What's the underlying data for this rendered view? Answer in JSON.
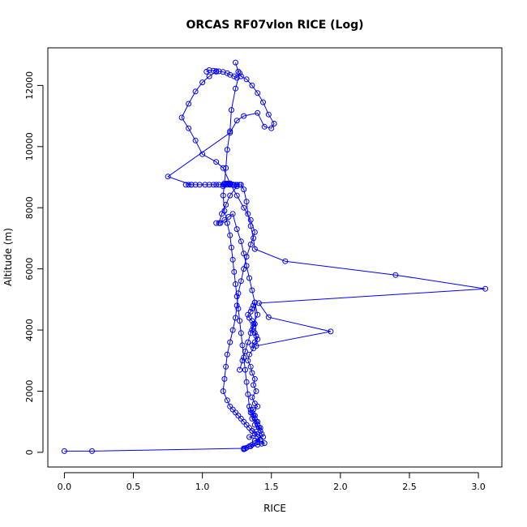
{
  "chart_data": {
    "type": "scatter",
    "title": "ORCAS RF07vlon RICE (Log)",
    "xlabel": "RICE",
    "ylabel": "Altitude (m)",
    "xlim": [
      -0.12,
      3.17
    ],
    "ylim": [
      -480,
      13230
    ],
    "x_ticks": [
      0,
      0.5,
      1,
      1.5,
      2,
      2.5,
      3
    ],
    "x_tick_labels": [
      "0.0",
      "0.5",
      "1.0",
      "1.5",
      "2.0",
      "2.5",
      "3.0"
    ],
    "y_ticks": [
      0,
      2000,
      4000,
      6000,
      8000,
      10000,
      12000
    ],
    "y_tick_labels": [
      "0",
      "2000",
      "4000",
      "6000",
      "8000",
      "10000",
      "12000"
    ],
    "marker": "open-circle",
    "line": "connected",
    "grid": false,
    "legend": "none",
    "color": "#0000ff",
    "series": [
      {
        "x": [
          0.0,
          0.2,
          1.3,
          1.35,
          1.4,
          1.43,
          1.45,
          1.38,
          1.42,
          1.34,
          1.4,
          1.36,
          1.42,
          1.38,
          1.4,
          1.36,
          1.38,
          1.35,
          1.37,
          1.4,
          1.38,
          1.36,
          1.39,
          1.37,
          1.38,
          1.36,
          1.35,
          1.33,
          1.34,
          1.37,
          1.36,
          1.38,
          1.4,
          1.39,
          1.38,
          1.36,
          1.37,
          1.38,
          1.36,
          1.34,
          1.33,
          1.35,
          1.36,
          1.37,
          1.38,
          1.39,
          1.93,
          1.48,
          1.41,
          3.05,
          2.4,
          1.6,
          1.38,
          1.37,
          1.35,
          1.33,
          1.32,
          1.3,
          1.28,
          1.27,
          1.25,
          1.24,
          1.22,
          1.2,
          1.18,
          1.15,
          1.12,
          1.1,
          1.08,
          1.05,
          1.02,
          0.98,
          0.95,
          0.92,
          0.9,
          0.88,
          0.92,
          0.75,
          1.2,
          1.25,
          1.3,
          1.4,
          1.45,
          1.5,
          1.52,
          1.48,
          1.44,
          1.4,
          1.36,
          1.32,
          1.28,
          1.26,
          1.24
        ],
        "y": [
          40,
          40,
          130,
          200,
          250,
          280,
          300,
          380,
          420,
          500,
          600,
          700,
          800,
          900,
          1000,
          1100,
          1200,
          1300,
          1400,
          1500,
          1600,
          1800,
          2000,
          2200,
          2400,
          2600,
          2800,
          3000,
          3200,
          3400,
          3500,
          3600,
          3700,
          3800,
          3900,
          4000,
          4100,
          4200,
          4300,
          4400,
          4500,
          4600,
          4700,
          4800,
          4900,
          3480,
          3950,
          4420,
          4880,
          5350,
          5800,
          6250,
          6650,
          7000,
          7400,
          7800,
          8200,
          8600,
          8750,
          8750,
          8750,
          8750,
          8750,
          8750,
          8750,
          8750,
          8750,
          8750,
          8750,
          8750,
          8750,
          8750,
          8750,
          8750,
          8750,
          8750,
          8750,
          9020,
          10450,
          10850,
          11000,
          11100,
          10650,
          10600,
          10750,
          11050,
          11450,
          11750,
          12000,
          12200,
          12300,
          12450,
          12750
        ]
      },
      {
        "x": [
          1.1,
          1.05,
          1.0,
          0.95,
          0.9,
          0.85,
          0.9,
          0.95,
          1.0,
          1.1,
          1.15,
          1.2,
          1.25,
          1.3,
          1.35,
          1.38,
          1.35,
          1.32,
          1.3,
          1.28,
          1.26,
          1.25,
          1.24,
          1.22,
          1.2,
          1.18,
          1.17,
          1.16,
          1.15,
          1.18,
          1.2,
          1.22,
          1.24,
          1.26,
          1.28,
          1.3,
          1.32,
          1.34,
          1.36,
          1.38,
          1.4,
          1.42,
          1.4,
          1.38,
          1.36,
          1.34,
          1.32,
          1.31,
          1.3
        ],
        "y": [
          12450,
          12300,
          12100,
          11800,
          11400,
          10950,
          10600,
          10200,
          9750,
          9500,
          9300,
          8800,
          8400,
          8000,
          7600,
          7200,
          6800,
          6400,
          6000,
          5600,
          5200,
          4800,
          4400,
          4000,
          3600,
          3200,
          2800,
          2400,
          2000,
          1700,
          1500,
          1400,
          1300,
          1200,
          1100,
          1000,
          900,
          800,
          700,
          600,
          500,
          400,
          350,
          300,
          250,
          200,
          150,
          120,
          100
        ]
      },
      {
        "x": [
          1.03,
          1.05,
          1.08,
          1.1,
          1.12,
          1.15,
          1.18,
          1.2,
          1.23,
          1.25,
          1.27,
          1.24,
          1.21,
          1.2,
          1.18,
          1.17,
          1.16,
          1.15,
          1.16,
          1.18,
          1.2,
          1.21,
          1.22,
          1.23,
          1.24,
          1.25,
          1.26,
          1.27,
          1.28,
          1.29,
          1.3,
          1.31,
          1.32,
          1.33,
          1.34,
          1.35,
          1.36,
          1.37,
          1.38,
          1.39,
          1.4,
          1.41,
          1.42,
          1.43,
          1.44
        ],
        "y": [
          12450,
          12500,
          12480,
          12470,
          12460,
          12440,
          12400,
          12350,
          12300,
          12250,
          12400,
          11900,
          11200,
          10500,
          9900,
          9300,
          8800,
          8400,
          7900,
          7500,
          7100,
          6700,
          6300,
          5900,
          5500,
          5100,
          4700,
          4300,
          3900,
          3500,
          3100,
          2700,
          2300,
          1900,
          1500,
          1400,
          1300,
          1200,
          1100,
          1000,
          900,
          800,
          700,
          600,
          500
        ]
      },
      {
        "x": [
          1.15,
          1.16,
          1.17,
          1.18,
          1.19,
          1.2,
          1.22,
          1.23,
          1.25,
          1.2,
          1.17,
          1.14,
          1.12,
          1.1,
          1.13,
          1.16,
          1.19,
          1.22,
          1.25,
          1.28,
          1.3,
          1.32,
          1.34,
          1.36,
          1.38,
          1.4,
          1.37,
          1.35,
          1.33,
          1.31,
          1.29,
          1.27
        ],
        "y": [
          8700,
          8750,
          8780,
          8790,
          8780,
          8770,
          8760,
          8740,
          8700,
          8400,
          8100,
          7800,
          7500,
          7500,
          7500,
          7600,
          7700,
          7800,
          7300,
          6900,
          6500,
          6100,
          5700,
          5300,
          4900,
          4500,
          4200,
          3900,
          3600,
          3300,
          3000,
          2700
        ]
      }
    ]
  }
}
